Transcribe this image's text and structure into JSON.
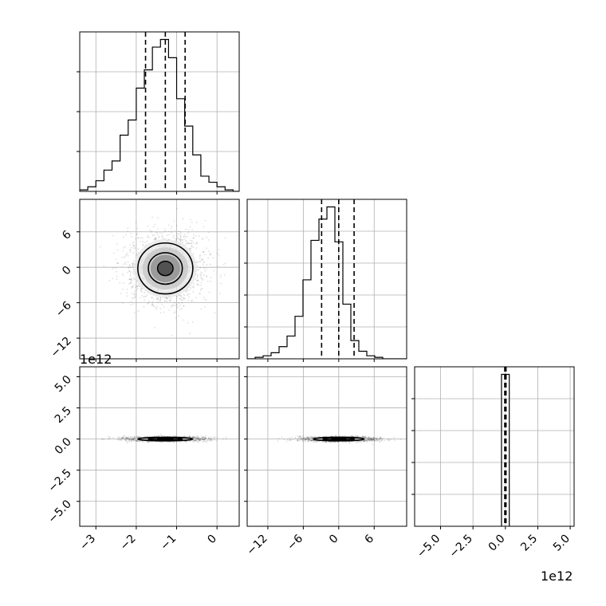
{
  "figure": {
    "type": "corner-plot",
    "offset_label_x": "1e12",
    "offset_label_y": "1e12"
  },
  "chart_data": [
    {
      "id": "hist-p1",
      "type": "histogram",
      "x_ticks": [
        "−3",
        "−2",
        "−1",
        "0"
      ],
      "x_tick_values": [
        -3,
        -2,
        -1,
        0
      ],
      "xlim": [
        -3.4,
        0.55
      ],
      "quantiles": [
        -1.77,
        -1.28,
        -0.79
      ],
      "bins": {
        "start": -3.4,
        "width": 0.2,
        "heights": [
          0.01,
          0.03,
          0.07,
          0.14,
          0.2,
          0.37,
          0.47,
          0.68,
          0.8,
          0.95,
          1.0,
          0.88,
          0.61,
          0.43,
          0.24,
          0.1,
          0.06,
          0.03,
          0.01,
          0.0
        ]
      },
      "grid": true
    },
    {
      "id": "scatter-p1-p2",
      "type": "2d-density",
      "x_ticks": [
        "−3",
        "−2",
        "−1",
        "0"
      ],
      "x_tick_values": [
        -3,
        -2,
        -1,
        0
      ],
      "y_ticks": [
        "−12",
        "−6",
        "0",
        "6"
      ],
      "y_tick_values": [
        -12,
        -6,
        0,
        6
      ],
      "xlim": [
        -3.4,
        0.55
      ],
      "ylim": [
        -15.5,
        11.5
      ],
      "center": [
        -1.28,
        -0.2
      ],
      "sigma": [
        0.49,
        3.1
      ],
      "contour_levels": [
        0.39,
        0.86,
        1.39
      ],
      "grid": true
    },
    {
      "id": "hist-p2",
      "type": "histogram",
      "x_ticks": [
        "−12",
        "−6",
        "0",
        "6"
      ],
      "x_tick_values": [
        -12,
        -6,
        0,
        6
      ],
      "xlim": [
        -15.5,
        11.5
      ],
      "quantiles": [
        -2.9,
        0.0,
        2.6
      ],
      "bins": {
        "start": -15.5,
        "width": 1.35,
        "heights": [
          0.0,
          0.01,
          0.02,
          0.04,
          0.08,
          0.15,
          0.28,
          0.52,
          0.78,
          0.92,
          1.0,
          0.77,
          0.36,
          0.12,
          0.05,
          0.02,
          0.01,
          0.0,
          0.0,
          0.0
        ]
      },
      "grid": true
    },
    {
      "id": "scatter-p1-p3",
      "type": "2d-density",
      "x_ticks": [
        "−3",
        "−2",
        "−1",
        "0"
      ],
      "x_tick_values": [
        -3,
        -2,
        -1,
        0
      ],
      "y_ticks": [
        "−5.0",
        "−2.5",
        "0.0",
        "2.5",
        "5.0"
      ],
      "y_tick_values": [
        -5.0,
        -2.5,
        0.0,
        2.5,
        5.0
      ],
      "xlim": [
        -3.4,
        0.55
      ],
      "ylim": [
        -7,
        5.8
      ],
      "y_offset_label": "1e12",
      "center": [
        -1.28,
        0.0
      ],
      "sigma": [
        0.49,
        0.1
      ],
      "contour_levels": [
        0.39,
        0.86,
        1.39
      ],
      "grid": true
    },
    {
      "id": "scatter-p2-p3",
      "type": "2d-density",
      "x_ticks": [
        "−12",
        "−6",
        "0",
        "6"
      ],
      "x_tick_values": [
        -12,
        -6,
        0,
        6
      ],
      "y_ticks": [
        "−5.0",
        "−2.5",
        "0.0",
        "2.5",
        "5.0"
      ],
      "y_tick_values": [
        -5.0,
        -2.5,
        0.0,
        2.5,
        5.0
      ],
      "xlim": [
        -15.5,
        11.5
      ],
      "ylim": [
        -7,
        5.8
      ],
      "center": [
        0.0,
        0.0
      ],
      "sigma": [
        3.1,
        0.1
      ],
      "contour_levels": [
        0.39,
        0.86,
        1.39
      ],
      "grid": true
    },
    {
      "id": "hist-p3",
      "type": "histogram",
      "x_ticks": [
        "−5.0",
        "−2.5",
        "0.0",
        "2.5",
        "5.0"
      ],
      "x_tick_values": [
        -5.0,
        -2.5,
        0.0,
        2.5,
        5.0
      ],
      "xlim": [
        -7,
        5.3
      ],
      "x_offset_label": "1e12",
      "quantiles": [
        -0.05,
        0.0,
        0.05
      ],
      "bins": {
        "start": -0.3,
        "width": 0.6,
        "heights": [
          1.0
        ]
      },
      "grid": true
    }
  ]
}
